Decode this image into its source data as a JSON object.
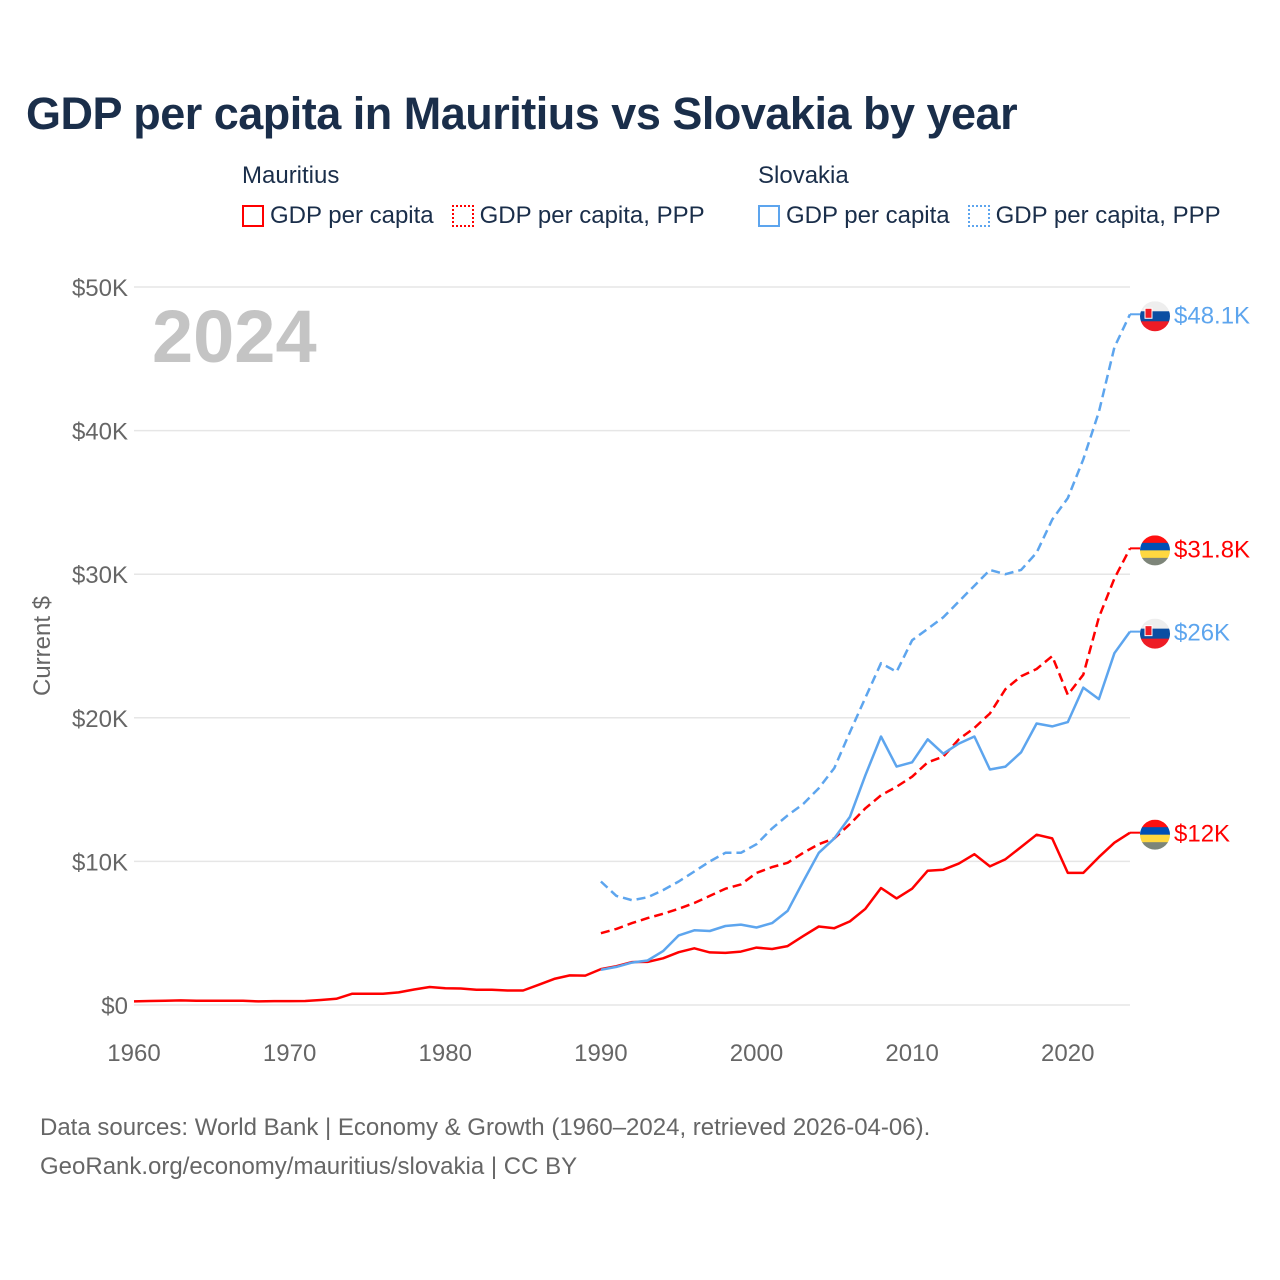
{
  "title": "GDP per capita in Mauritius vs Slovakia by year",
  "legend": {
    "groups": [
      {
        "name": "Mauritius",
        "items": [
          "GDP per capita",
          "GDP per capita, PPP"
        ],
        "color": "#ff0000"
      },
      {
        "name": "Slovakia",
        "items": [
          "GDP per capita",
          "GDP per capita, PPP"
        ],
        "color": "#5da5ee"
      }
    ]
  },
  "footer": {
    "line1": "Data sources: World Bank | Economy & Growth (1960–2024, retrieved 2026-04-06).",
    "line2": "GeoRank.org/economy/mauritius/slovakia | CC BY"
  },
  "chart_data": {
    "type": "line",
    "title": "GDP per capita in Mauritius vs Slovakia by year",
    "ylabel": "Current $",
    "xlabel": "",
    "year_watermark": "2024",
    "xlim": [
      1960,
      2024
    ],
    "ylim": [
      0,
      50000
    ],
    "xticks": [
      "1960",
      "1970",
      "1980",
      "1990",
      "2000",
      "2010",
      "2020"
    ],
    "yticks": [
      "$0",
      "$10K",
      "$20K",
      "$30K",
      "$40K",
      "$50K"
    ],
    "grid": true,
    "series": [
      {
        "name": "Mauritius GDP per capita",
        "color": "#ff0000",
        "dash": false,
        "start": 1960,
        "end_label": "$12K",
        "flag": "mauritius",
        "values": [
          250,
          280,
          290,
          320,
          290,
          290,
          290,
          290,
          250,
          270,
          270,
          280,
          350,
          430,
          780,
          780,
          780,
          880,
          1080,
          1250,
          1170,
          1150,
          1060,
          1060,
          1010,
          1010,
          1410,
          1820,
          2060,
          2050,
          2500,
          2700,
          2990,
          3000,
          3250,
          3680,
          3950,
          3660,
          3630,
          3720,
          4000,
          3900,
          4100,
          4800,
          5470,
          5350,
          5820,
          6700,
          8150,
          7420,
          8100,
          9350,
          9420,
          9850,
          10500,
          9650,
          10150,
          11000,
          11860,
          11600,
          9200,
          9200,
          10300,
          11300,
          12000
        ]
      },
      {
        "name": "Mauritius GDP per capita, PPP",
        "color": "#ff0000",
        "dash": true,
        "start": 1990,
        "end_label": "$31.8K",
        "flag": "mauritius",
        "values": [
          5000,
          5300,
          5700,
          6050,
          6350,
          6700,
          7100,
          7600,
          8100,
          8400,
          9200,
          9600,
          9900,
          10600,
          11200,
          11600,
          12600,
          13700,
          14600,
          15200,
          15900,
          16900,
          17300,
          18500,
          19300,
          20300,
          22000,
          22900,
          23400,
          24300,
          21600,
          23000,
          27000,
          29700,
          31800
        ]
      },
      {
        "name": "Slovakia GDP per capita",
        "color": "#5da5ee",
        "dash": false,
        "start": 1990,
        "end_label": "$26K",
        "flag": "slovakia",
        "values": [
          2450,
          2650,
          2950,
          3100,
          3750,
          4850,
          5200,
          5150,
          5500,
          5600,
          5400,
          5700,
          6550,
          8600,
          10600,
          11600,
          13100,
          16000,
          18700,
          16600,
          16900,
          18500,
          17500,
          18200,
          18700,
          16400,
          16600,
          17600,
          19600,
          19400,
          19700,
          22100,
          21300,
          24500,
          26000
        ]
      },
      {
        "name": "Slovakia GDP per capita, PPP",
        "color": "#5da5ee",
        "dash": true,
        "start": 1990,
        "end_label": "$48.1K",
        "flag": "slovakia",
        "values": [
          8600,
          7600,
          7300,
          7500,
          8000,
          8600,
          9300,
          10000,
          10600,
          10600,
          11200,
          12300,
          13200,
          14000,
          15100,
          16500,
          19000,
          21400,
          23800,
          23200,
          25400,
          26200,
          27000,
          28100,
          29200,
          30300,
          30000,
          30300,
          31500,
          33800,
          35300,
          38000,
          41300,
          45800,
          48100
        ]
      }
    ]
  }
}
